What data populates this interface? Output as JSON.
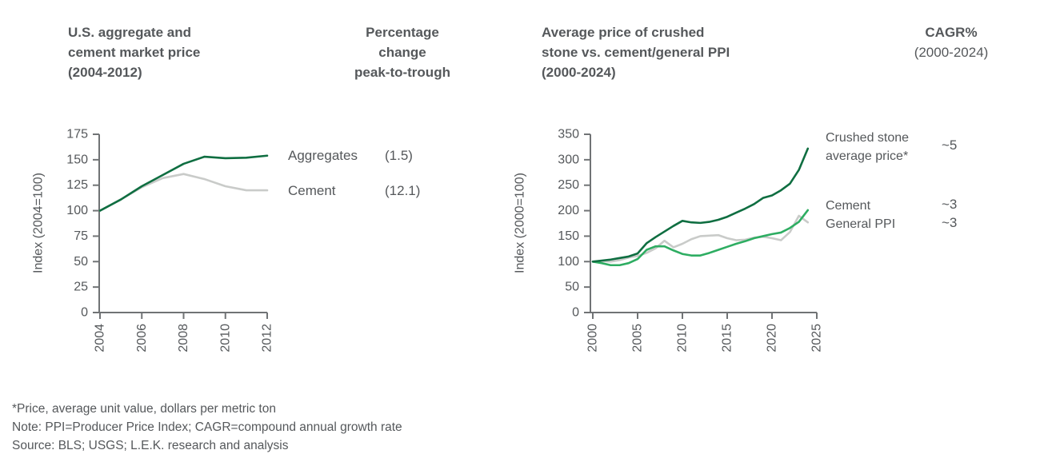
{
  "colors": {
    "dark_green": "#0f6e41",
    "mid_green": "#2ead62",
    "gray_line": "#c9cbc9",
    "text": "#55585b",
    "axis": "#707375",
    "background": "#ffffff"
  },
  "left_panel": {
    "title_lines": [
      "U.S. aggregate and",
      "cement market price",
      "(2004-2012)"
    ],
    "ylabel": "Index (2004=100)"
  },
  "middle_panel": {
    "title_lines": [
      "Percentage",
      "change",
      "peak-to-trough"
    ],
    "rows": [
      {
        "label": "Aggregates",
        "value": "(1.5)"
      },
      {
        "label": "Cement",
        "value": "(12.1)"
      }
    ]
  },
  "right_panel": {
    "title_lines": [
      "Average price of crushed",
      "stone vs. cement/general PPI",
      "(2000-2024)"
    ],
    "ylabel": "Index (2000=100)",
    "legend": [
      {
        "label_lines": [
          "Crushed stone",
          "average price*"
        ],
        "cagr": "~5"
      },
      {
        "label_lines": [
          "Cement"
        ],
        "cagr": "~3"
      },
      {
        "label_lines": [
          "General PPI"
        ],
        "cagr": "~3"
      }
    ]
  },
  "cagr_panel": {
    "title": "CAGR%",
    "subtitle": "(2000-2024)"
  },
  "footnotes": [
    "*Price, average unit value, dollars per metric ton",
    "Note: PPI=Producer Price Index; CAGR=compound annual growth rate",
    "Source: BLS; USGS; L.E.K. research and analysis"
  ],
  "chart_data": [
    {
      "type": "line",
      "title": "U.S. aggregate and cement market price (2004-2012)",
      "xlabel": "",
      "ylabel": "Index (2004=100)",
      "ylim": [
        0,
        175
      ],
      "yticks": [
        0,
        25,
        50,
        75,
        100,
        125,
        150,
        175
      ],
      "xticks": [
        2004,
        2006,
        2008,
        2010,
        2012
      ],
      "grid": false,
      "legend_position": "right-annotation",
      "x": [
        2004,
        2005,
        2006,
        2007,
        2008,
        2009,
        2010,
        2011,
        2012
      ],
      "series": [
        {
          "name": "Aggregates",
          "color_key": "dark_green",
          "peak_to_trough_pct": "(1.5)",
          "values": [
            100,
            111,
            124,
            135,
            146,
            153,
            151.5,
            152,
            154
          ]
        },
        {
          "name": "Cement",
          "color_key": "gray_line",
          "peak_to_trough_pct": "(12.1)",
          "values": [
            100,
            111,
            123,
            132,
            136,
            131,
            124,
            120,
            120
          ]
        }
      ]
    },
    {
      "type": "line",
      "title": "Average price of crushed stone vs. cement/general PPI (2000-2024)",
      "xlabel": "",
      "ylabel": "Index (2000=100)",
      "ylim": [
        0,
        350
      ],
      "yticks": [
        0,
        50,
        100,
        150,
        200,
        250,
        300,
        350
      ],
      "xticks": [
        2000,
        2005,
        2010,
        2015,
        2020,
        2025
      ],
      "grid": false,
      "legend_position": "right-of-line-ends",
      "x": [
        2000,
        2001,
        2002,
        2003,
        2004,
        2005,
        2006,
        2007,
        2008,
        2009,
        2010,
        2011,
        2012,
        2013,
        2014,
        2015,
        2016,
        2017,
        2018,
        2019,
        2020,
        2021,
        2022,
        2023,
        2024
      ],
      "series": [
        {
          "name": "Crushed stone average price*",
          "color_key": "dark_green",
          "cagr_pct": "~5",
          "values": [
            100,
            102,
            104,
            107,
            110,
            116,
            136,
            148,
            159,
            170,
            180,
            177,
            176,
            178,
            182,
            188,
            196,
            204,
            213,
            225,
            230,
            240,
            253,
            280,
            322
          ]
        },
        {
          "name": "Cement",
          "color_key": "mid_green",
          "cagr_pct": "~3",
          "values": [
            100,
            97,
            93,
            93,
            97,
            105,
            123,
            130,
            130,
            122,
            115,
            112,
            112,
            117,
            123,
            129,
            135,
            140,
            146,
            150,
            154,
            157,
            166,
            178,
            201
          ]
        },
        {
          "name": "General PPI",
          "color_key": "gray_line",
          "cagr_pct": "~3",
          "values": [
            100,
            101,
            100,
            103,
            108,
            111,
            117,
            126,
            141,
            128,
            135,
            144,
            150,
            151,
            152,
            146,
            142,
            143,
            147,
            149,
            146,
            142,
            158,
            190,
            177
          ]
        }
      ]
    }
  ]
}
